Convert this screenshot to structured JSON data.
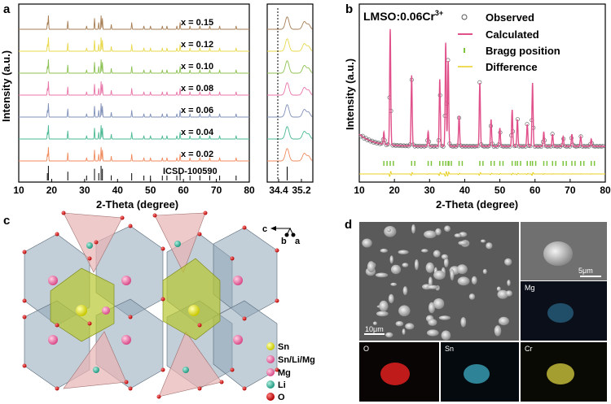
{
  "panels": {
    "a": "a",
    "b": "b",
    "c": "c",
    "d": "d"
  },
  "panel_a": {
    "ylabel": "Intensity (a.u.)",
    "xlabel": "2-Theta (degree)",
    "main_ticks": [
      "10",
      "20",
      "30",
      "40",
      "50",
      "60",
      "70",
      "80"
    ],
    "zoom_ticks": [
      "34.4",
      "35.2"
    ],
    "traces": [
      {
        "label": "x = 0.15",
        "color": "#a67c52"
      },
      {
        "label": "x = 0.12",
        "color": "#e8d84a"
      },
      {
        "label": "x = 0.10",
        "color": "#8cc152"
      },
      {
        "label": "x = 0.08",
        "color": "#e874a8"
      },
      {
        "label": "x = 0.06",
        "color": "#7f8fb8"
      },
      {
        "label": "x = 0.04",
        "color": "#48b890"
      },
      {
        "label": "x = 0.02",
        "color": "#f08a5d"
      }
    ],
    "reference": "ICSD-100590"
  },
  "panel_b": {
    "sample": "LMSO:0.06Cr",
    "sample_sup": "3+",
    "ylabel": "Intensity (a.u.)",
    "xlabel": "2-Theta (degree)",
    "ticks": [
      "10",
      "20",
      "30",
      "40",
      "50",
      "60",
      "70",
      "80"
    ],
    "legend": [
      "Observed",
      "Calculated",
      "Bragg position",
      "Difference"
    ],
    "colors": {
      "observed": "#555555",
      "calculated": "#e0508a",
      "bragg": "#7cc43c",
      "difference": "#e8d020"
    }
  },
  "panel_c": {
    "axes": {
      "c": "c",
      "b": "b",
      "a": "a"
    },
    "legend": [
      {
        "label": "Sn",
        "color": "#e8e820"
      },
      {
        "label": "Sn/Li/Mg",
        "color": "#e85a9a"
      },
      {
        "label": "Mg",
        "color": "#e06a9a"
      },
      {
        "label": "Li",
        "color": "#40c0a0"
      },
      {
        "label": "O",
        "color": "#d81818"
      }
    ]
  },
  "panel_d": {
    "scale_large": "10μm",
    "scale_small": "5μm",
    "maps": [
      "Mg",
      "O",
      "Sn",
      "Cr"
    ]
  },
  "chart_data": [
    {
      "type": "line",
      "title": "",
      "xlabel": "2-Theta (degree)",
      "ylabel": "Intensity (a.u.)",
      "xlim": [
        10,
        80
      ],
      "series": [
        {
          "name": "x = 0.15"
        },
        {
          "name": "x = 0.12"
        },
        {
          "name": "x = 0.10"
        },
        {
          "name": "x = 0.08"
        },
        {
          "name": "x = 0.06"
        },
        {
          "name": "x = 0.04"
        },
        {
          "name": "x = 0.02"
        }
      ],
      "reference_peaks": [
        18.7,
        19.0,
        24.9,
        30.6,
        33.0,
        34.3,
        35.0,
        35.4,
        38.1,
        44.3,
        48.0,
        50.0,
        53.6,
        55.0,
        58.0,
        59.0,
        62.0,
        65.0,
        68.0,
        71.0,
        76.0
      ],
      "reference_label": "ICSD-100590"
    },
    {
      "type": "line",
      "title": "",
      "xlabel": "2-Theta (degree)",
      "ylabel": "",
      "xlim": [
        34.0,
        35.6
      ],
      "x_ticks": [
        34.4,
        35.2
      ],
      "marker_x": 34.7
    },
    {
      "type": "line",
      "title": "LMSO:0.06Cr3+",
      "xlabel": "2-Theta (degree)",
      "ylabel": "Intensity (a.u.)",
      "xlim": [
        10,
        80
      ],
      "series": [
        {
          "name": "Observed"
        },
        {
          "name": "Calculated",
          "peaks": [
            [
              17.0,
              0.1
            ],
            [
              18.8,
              0.95
            ],
            [
              24.9,
              0.58
            ],
            [
              29.6,
              0.12
            ],
            [
              32.9,
              0.55
            ],
            [
              34.6,
              0.85
            ],
            [
              35.3,
              0.7
            ],
            [
              38.4,
              0.25
            ],
            [
              44.3,
              0.52
            ],
            [
              47.5,
              0.22
            ],
            [
              50.0,
              0.15
            ],
            [
              53.5,
              0.3
            ],
            [
              55.0,
              0.22
            ],
            [
              57.8,
              0.18
            ],
            [
              59.3,
              0.52
            ],
            [
              62.5,
              0.12
            ],
            [
              65.0,
              0.1
            ],
            [
              68.0,
              0.08
            ],
            [
              70.5,
              0.1
            ],
            [
              73.0,
              0.08
            ],
            [
              76.0,
              0.06
            ]
          ]
        },
        {
          "name": "Bragg position"
        },
        {
          "name": "Difference"
        }
      ]
    }
  ]
}
